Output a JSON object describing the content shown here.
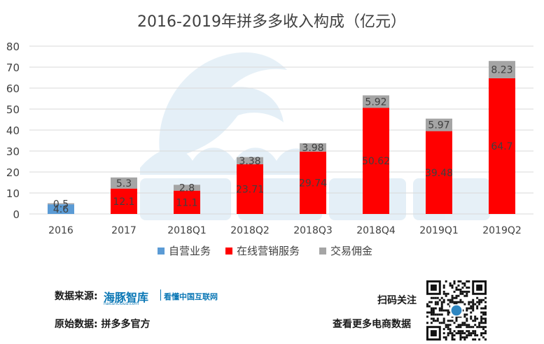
{
  "chart_data": {
    "type": "bar",
    "stacked": true,
    "title": "2016-2019年拼多多收入构成（亿元）",
    "xlabel": "",
    "ylabel": "",
    "categories": [
      "2016",
      "2017",
      "2018Q1",
      "2018Q2",
      "2018Q3",
      "2018Q4",
      "2019Q1",
      "2019Q2"
    ],
    "series": [
      {
        "name": "自营业务",
        "color": "#5b9bd5",
        "values": [
          4.6,
          0,
          0,
          0,
          0,
          0,
          0,
          0
        ],
        "labels": [
          "4.6",
          "",
          "",
          "",
          "",
          "",
          "",
          ""
        ]
      },
      {
        "name": "在线营销服务",
        "color": "#ff0000",
        "values": [
          0,
          12.1,
          11.1,
          23.71,
          29.74,
          50.62,
          39.48,
          64.7
        ],
        "labels": [
          "",
          "12.1",
          "11.1",
          "23.71",
          "29.74",
          "50.62",
          "39.48",
          "64.7"
        ]
      },
      {
        "name": "交易佣金",
        "color": "#a5a5a5",
        "values": [
          0.5,
          5.3,
          2.8,
          3.38,
          3.98,
          5.92,
          5.97,
          8.23
        ],
        "labels": [
          "0.5",
          "5.3",
          "2.8",
          "3.38",
          "3.98",
          "5.92",
          "5.97",
          "8.23"
        ]
      }
    ],
    "ylim": [
      0,
      80
    ],
    "yticks": [
      0,
      10,
      20,
      30,
      40,
      50,
      60,
      70,
      80
    ],
    "grid": true,
    "legend": "bottom"
  },
  "footer": {
    "source_label": "数据来源:",
    "brand_name": "海豚智库",
    "brand_sub": "haituncloud.com",
    "brand_slogan": "看懂中国互联网",
    "origin_label": "原始数据: 拼多多官方",
    "scan_label": "扫码关注",
    "more_label": "查看更多电商数据"
  }
}
